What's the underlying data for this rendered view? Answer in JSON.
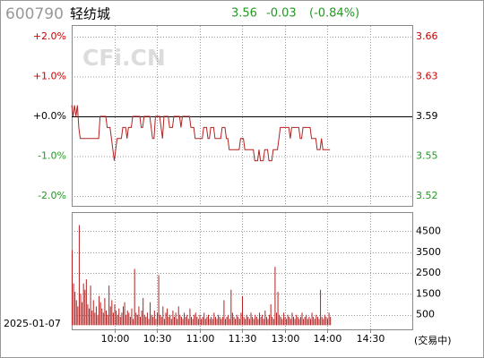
{
  "header": {
    "code": "600790",
    "name": "轻纺城",
    "price": "3.56",
    "change": "-0.03",
    "change_pct": "(-0.84%)"
  },
  "watermark": "CFi.CN",
  "date": "2025-01-07",
  "status": "(交易中)",
  "chart_data": [
    {
      "type": "line",
      "ylim": [
        -2,
        2
      ],
      "yticks": [
        {
          "value": 2,
          "label": "+2.0%"
        },
        {
          "value": 1,
          "label": "+1.0%"
        },
        {
          "value": 0,
          "label": "+0.0%"
        },
        {
          "value": -1,
          "label": "-1.0%"
        },
        {
          "value": -2,
          "label": "-2.0%"
        }
      ],
      "y2lim": [
        3.5182,
        3.6618
      ],
      "y2ticks": [
        {
          "value": 3.6618,
          "label": "3.66"
        },
        {
          "value": 3.6259,
          "label": "3.63"
        },
        {
          "value": 3.59,
          "label": "3.59"
        },
        {
          "value": 3.5541,
          "label": "3.55"
        },
        {
          "value": 3.5182,
          "label": "3.52"
        }
      ],
      "xlim": [
        0,
        240
      ],
      "grid": true,
      "series": [
        {
          "color": "#b22222",
          "axis": "y2",
          "values": [
            3.6,
            3.59,
            3.6,
            3.59,
            3.6,
            3.58,
            3.57,
            3.57,
            3.57,
            3.57,
            3.57,
            3.57,
            3.57,
            3.57,
            3.57,
            3.57,
            3.57,
            3.57,
            3.57,
            3.57,
            3.59,
            3.59,
            3.59,
            3.59,
            3.59,
            3.58,
            3.58,
            3.58,
            3.57,
            3.56,
            3.55,
            3.56,
            3.57,
            3.57,
            3.57,
            3.57,
            3.58,
            3.58,
            3.58,
            3.57,
            3.58,
            3.58,
            3.58,
            3.59,
            3.59,
            3.59,
            3.59,
            3.59,
            3.59,
            3.58,
            3.58,
            3.59,
            3.59,
            3.59,
            3.59,
            3.59,
            3.58,
            3.57,
            3.57,
            3.59,
            3.59,
            3.59,
            3.59,
            3.58,
            3.57,
            3.59,
            3.59,
            3.59,
            3.59,
            3.58,
            3.58,
            3.58,
            3.59,
            3.59,
            3.59,
            3.59,
            3.59,
            3.58,
            3.59,
            3.59,
            3.59,
            3.59,
            3.59,
            3.59,
            3.58,
            3.58,
            3.58,
            3.57,
            3.57,
            3.57,
            3.57,
            3.57,
            3.57,
            3.58,
            3.58,
            3.58,
            3.57,
            3.57,
            3.58,
            3.58,
            3.58,
            3.57,
            3.57,
            3.57,
            3.57,
            3.57,
            3.58,
            3.58,
            3.58,
            3.57,
            3.57,
            3.56,
            3.56,
            3.56,
            3.56,
            3.56,
            3.56,
            3.56,
            3.56,
            3.57,
            3.57,
            3.57,
            3.56,
            3.56,
            3.56,
            3.56,
            3.56,
            3.56,
            3.56,
            3.55,
            3.55,
            3.55,
            3.56,
            3.55,
            3.55,
            3.55,
            3.56,
            3.56,
            3.56,
            3.55,
            3.55,
            3.55,
            3.56,
            3.56,
            3.56,
            3.56,
            3.57,
            3.58,
            3.58,
            3.58,
            3.58,
            3.58,
            3.58,
            3.58,
            3.57,
            3.58,
            3.58,
            3.58,
            3.58,
            3.58,
            3.58,
            3.57,
            3.57,
            3.58,
            3.58,
            3.58,
            3.58,
            3.58,
            3.58,
            3.57,
            3.57,
            3.57,
            3.57,
            3.56,
            3.56,
            3.56,
            3.57,
            3.56,
            3.56,
            3.56,
            3.56,
            3.56,
            3.56
          ]
        }
      ]
    },
    {
      "type": "bar",
      "ylim": [
        -200,
        5400
      ],
      "yticks": [
        500,
        1500,
        2500,
        3500,
        4500
      ],
      "xlim": [
        0,
        240
      ],
      "xticks": [
        {
          "value": 30,
          "label": "10:00"
        },
        {
          "value": 60,
          "label": "10:30"
        },
        {
          "value": 90,
          "label": "11:00"
        },
        {
          "value": 120,
          "label": "11:30"
        },
        {
          "value": 150,
          "label": "13:00"
        },
        {
          "value": 180,
          "label": "14:00"
        },
        {
          "value": 210,
          "label": "14:30"
        }
      ],
      "color": "#b22222",
      "values": [
        3600,
        2000,
        1600,
        1200,
        900,
        4800,
        1500,
        1100,
        2000,
        1700,
        2200,
        1000,
        800,
        1900,
        700,
        1200,
        600,
        900,
        500,
        1400,
        1100,
        800,
        600,
        1300,
        700,
        500,
        1900,
        900,
        1200,
        600,
        1000,
        700,
        500,
        800,
        400,
        600,
        900,
        1100,
        500,
        700,
        600,
        400,
        800,
        300,
        2700,
        600,
        500,
        900,
        400,
        700,
        1300,
        500,
        400,
        600,
        300,
        1100,
        500,
        400,
        700,
        300,
        600,
        2400,
        500,
        400,
        900,
        300,
        600,
        800,
        400,
        500,
        300,
        700,
        400,
        600,
        300,
        900,
        500,
        400,
        300,
        600,
        400,
        500,
        300,
        800,
        400,
        300,
        500,
        600,
        400,
        300,
        500,
        300,
        400,
        600,
        300,
        400,
        500,
        300,
        400,
        300,
        600,
        400,
        300,
        500,
        400,
        300,
        400,
        1200,
        300,
        400,
        500,
        300,
        1700,
        600,
        400,
        300,
        500,
        400,
        300,
        600,
        1400,
        400,
        300,
        500,
        400,
        300,
        600,
        400,
        300,
        500,
        400,
        300,
        600,
        400,
        500,
        300,
        700,
        400,
        300,
        500,
        1000,
        400,
        300,
        2800,
        600,
        1600,
        500,
        400,
        300,
        600,
        400,
        300,
        500,
        400,
        300,
        600,
        400,
        300,
        500,
        400,
        300,
        400,
        600,
        300,
        400,
        500,
        300,
        400,
        300,
        600,
        400,
        300,
        500,
        400,
        300,
        1700,
        400,
        300,
        500,
        400,
        300,
        600,
        400
      ]
    }
  ]
}
